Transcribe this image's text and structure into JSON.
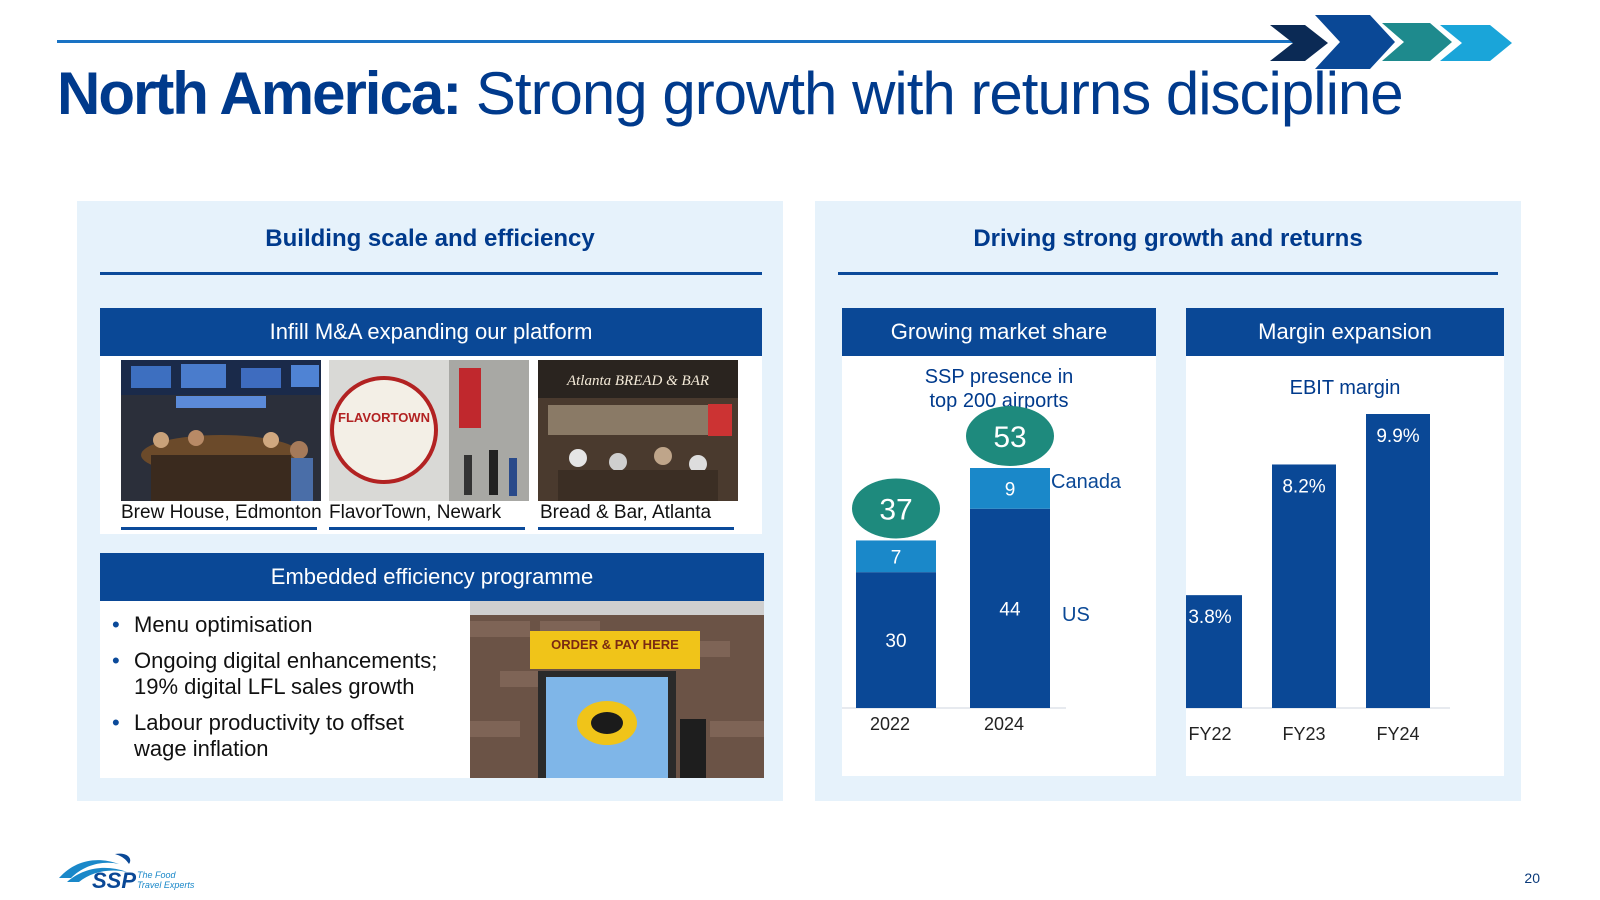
{
  "slide": {
    "title_bold": "North America:",
    "title_rest": "Strong growth with returns discipline",
    "page_number": "20"
  },
  "left": {
    "heading": "Building scale and efficiency",
    "infill": {
      "heading": "Infill M&A expanding our platform",
      "photos": [
        {
          "caption": "Brew House, Edmonton",
          "sign_text": ""
        },
        {
          "caption": "FlavorTown, Newark",
          "sign_text": "FLAVORTOWN"
        },
        {
          "caption": "Bread & Bar, Atlanta",
          "sign_text": "Atlanta BREAD & BAR"
        }
      ]
    },
    "efficiency": {
      "heading": "Embedded efficiency programme",
      "bullets": [
        "Menu optimisation",
        "Ongoing digital enhancements; 19% digital LFL sales growth",
        "Labour productivity to offset wage inflation"
      ],
      "kiosk_sign": "ORDER & PAY HERE"
    }
  },
  "right": {
    "heading": "Driving strong growth and returns",
    "market_share": {
      "heading": "Growing market share",
      "subtitle_line1": "SSP presence in",
      "subtitle_line2": "top 200 airports"
    },
    "margin": {
      "heading": "Margin expansion",
      "subtitle": "EBIT margin"
    }
  },
  "chart_data": [
    {
      "type": "bar",
      "stacked": true,
      "title": "SSP presence in top 200 airports",
      "categories": [
        "2022",
        "2024"
      ],
      "series": [
        {
          "name": "US",
          "values": [
            30,
            44
          ],
          "color": "#0a4896"
        },
        {
          "name": "Canada",
          "values": [
            7,
            9
          ],
          "color": "#1a88c9"
        }
      ],
      "totals": [
        37,
        53
      ],
      "total_bubble_color": "#1e8a7d",
      "ylim": [
        0,
        60
      ],
      "legend_placement": "right"
    },
    {
      "type": "bar",
      "title": "EBIT margin",
      "categories": [
        "FY22",
        "FY23",
        "FY24"
      ],
      "values": [
        3.8,
        8.2,
        9.9
      ],
      "labels": [
        "3.8%",
        "8.2%",
        "9.9%"
      ],
      "color": "#0a4896",
      "ylim": [
        0,
        9.9
      ]
    }
  ],
  "logo": {
    "name": "SSP",
    "tagline_line1": "The Food",
    "tagline_line2": "Travel Experts"
  },
  "colors": {
    "brand_navy": "#003a8c",
    "bar_blue": "#0a4896",
    "light_blue": "#1a88c9",
    "teal": "#1e8a7d",
    "panel_bg": "#e6f2fb"
  }
}
